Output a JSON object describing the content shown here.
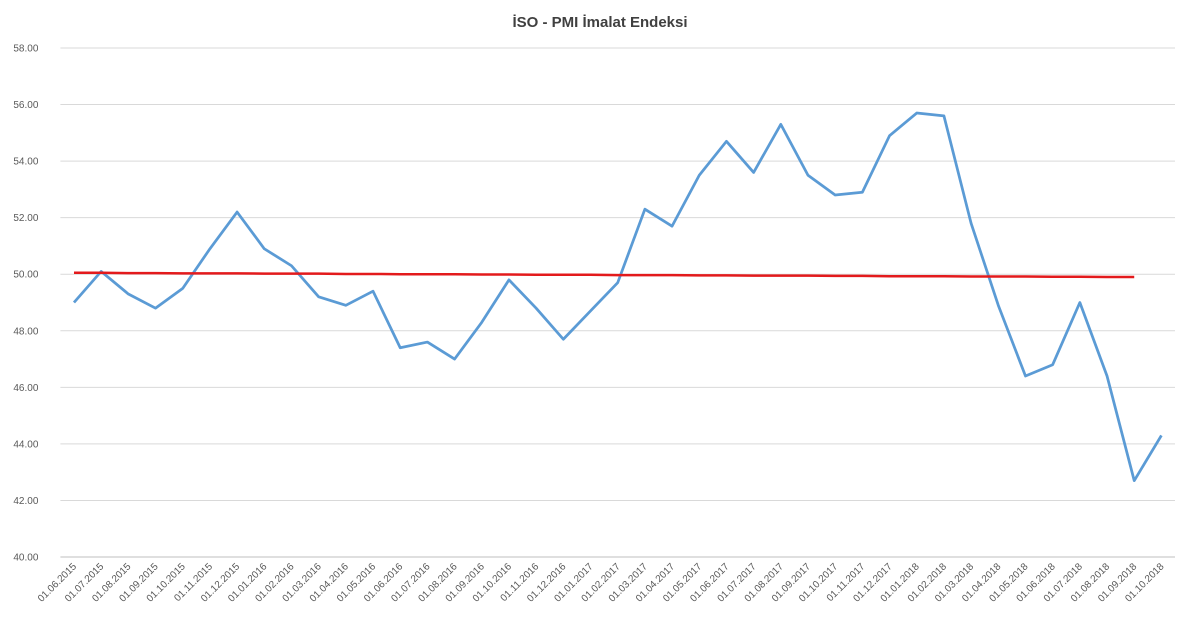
{
  "chart_data": {
    "type": "line",
    "title": "İSO - PMI İmalat Endeksi",
    "categories": [
      "01.06.2015",
      "01.07.2015",
      "01.08.2015",
      "01.09.2015",
      "01.10.2015",
      "01.11.2015",
      "01.12.2015",
      "01.01.2016",
      "01.02.2016",
      "01.03.2016",
      "01.04.2016",
      "01.05.2016",
      "01.06.2016",
      "01.07.2016",
      "01.08.2016",
      "01.09.2016",
      "01.10.2016",
      "01.11.2016",
      "01.12.2016",
      "01.01.2017",
      "01.02.2017",
      "01.03.2017",
      "01.04.2017",
      "01.05.2017",
      "01.06.2017",
      "01.07.2017",
      "01.08.2017",
      "01.09.2017",
      "01.10.2017",
      "01.11.2017",
      "01.12.2017",
      "01.01.2018",
      "01.02.2018",
      "01.03.2018",
      "01.04.2018",
      "01.05.2018",
      "01.06.2018",
      "01.07.2018",
      "01.08.2018",
      "01.09.2018",
      "01.10.2018"
    ],
    "series": [
      {
        "color": "#5b9bd5",
        "values": [
          49.0,
          50.1,
          49.3,
          48.8,
          49.5,
          50.9,
          52.2,
          50.9,
          50.3,
          49.2,
          48.9,
          49.4,
          47.4,
          47.6,
          47.0,
          48.3,
          49.8,
          48.8,
          47.7,
          48.7,
          49.7,
          52.3,
          51.7,
          53.5,
          54.7,
          53.6,
          55.3,
          53.5,
          52.8,
          52.9,
          54.9,
          55.7,
          55.6,
          51.8,
          48.9,
          46.4,
          46.8,
          49.0,
          46.4,
          42.7,
          44.3
        ]
      },
      {
        "color": "#e31a1c",
        "values": [
          50.05,
          50.05,
          50.04,
          50.04,
          50.03,
          50.03,
          50.03,
          50.02,
          50.02,
          50.02,
          50.01,
          50.01,
          50.0,
          50.0,
          50.0,
          49.99,
          49.99,
          49.98,
          49.98,
          49.98,
          49.97,
          49.97,
          49.97,
          49.96,
          49.96,
          49.95,
          49.95,
          49.95,
          49.94,
          49.94,
          49.93,
          49.93,
          49.93,
          49.92,
          49.92,
          49.92,
          49.91,
          49.91,
          49.9,
          49.9,
          null
        ]
      }
    ],
    "ylim": [
      40,
      58
    ],
    "yticks": [
      {
        "value": 40,
        "label": "40.00"
      },
      {
        "value": 42,
        "label": "42.00"
      },
      {
        "value": 44,
        "label": "44.00"
      },
      {
        "value": 46,
        "label": "46.00"
      },
      {
        "value": 48,
        "label": "48.00"
      },
      {
        "value": 50,
        "label": "50.00"
      },
      {
        "value": 52,
        "label": "52.00"
      },
      {
        "value": 54,
        "label": "54.00"
      },
      {
        "value": 56,
        "label": "56.00"
      },
      {
        "value": 58,
        "label": "58.00"
      }
    ],
    "grid": true
  }
}
